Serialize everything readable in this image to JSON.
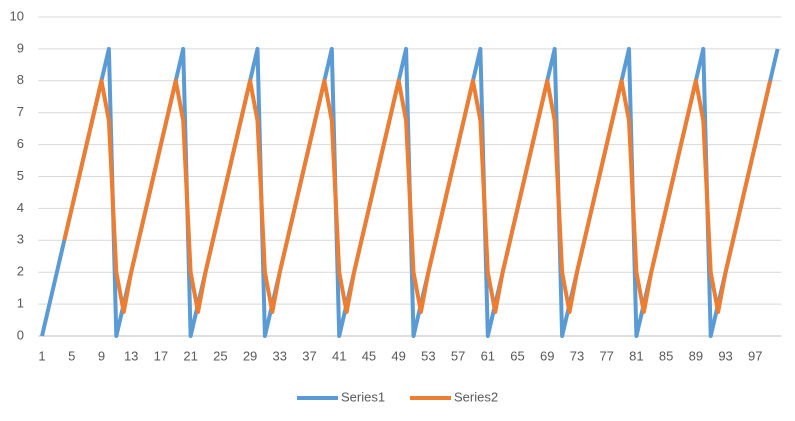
{
  "chart_data": {
    "type": "line",
    "categories": [
      1,
      null,
      null,
      null,
      5,
      null,
      null,
      null,
      9,
      null,
      null,
      null,
      13,
      null,
      null,
      null,
      17,
      null,
      null,
      null,
      21,
      null,
      null,
      null,
      25,
      null,
      null,
      null,
      29,
      null,
      null,
      null,
      33,
      null,
      null,
      null,
      37,
      null,
      null,
      null,
      41,
      null,
      null,
      null,
      45,
      null,
      null,
      null,
      49,
      null,
      null,
      null,
      53,
      null,
      null,
      null,
      57,
      null,
      null,
      null,
      61,
      null,
      null,
      null,
      65,
      null,
      null,
      null,
      69,
      null,
      null,
      null,
      73,
      null,
      null,
      null,
      77,
      null,
      null,
      null,
      81,
      null,
      null,
      null,
      85,
      null,
      null,
      null,
      89,
      null,
      null,
      null,
      93,
      null,
      null,
      null,
      97,
      null,
      null,
      null
    ],
    "series": [
      {
        "name": "Series1",
        "color": "#5b9bd5",
        "values": [
          0,
          1,
          2,
          3,
          4,
          5,
          6,
          7,
          8,
          9,
          0,
          1,
          2,
          3,
          4,
          5,
          6,
          7,
          8,
          9,
          0,
          1,
          2,
          3,
          4,
          5,
          6,
          7,
          8,
          9,
          0,
          1,
          2,
          3,
          4,
          5,
          6,
          7,
          8,
          9,
          0,
          1,
          2,
          3,
          4,
          5,
          6,
          7,
          8,
          9,
          0,
          1,
          2,
          3,
          4,
          5,
          6,
          7,
          8,
          9,
          0,
          1,
          2,
          3,
          4,
          5,
          6,
          7,
          8,
          9,
          0,
          1,
          2,
          3,
          4,
          5,
          6,
          7,
          8,
          9,
          0,
          1,
          2,
          3,
          4,
          5,
          6,
          7,
          8,
          9,
          0,
          1,
          2,
          3,
          4,
          5,
          6,
          7,
          8,
          9
        ]
      },
      {
        "name": "Series2",
        "color": "#ed7d31",
        "values": [
          null,
          null,
          null,
          3,
          4,
          5,
          6,
          7,
          8,
          6.75,
          2,
          0.75,
          2,
          3,
          4,
          5,
          6,
          7,
          8,
          6.75,
          2,
          0.75,
          2,
          3,
          4,
          5,
          6,
          7,
          8,
          6.75,
          2,
          0.75,
          2,
          3,
          4,
          5,
          6,
          7,
          8,
          6.75,
          2,
          0.75,
          2,
          3,
          4,
          5,
          6,
          7,
          8,
          6.75,
          2,
          0.75,
          2,
          3,
          4,
          5,
          6,
          7,
          8,
          6.75,
          2,
          0.75,
          2,
          3,
          4,
          5,
          6,
          7,
          8,
          6.75,
          2,
          0.75,
          2,
          3,
          4,
          5,
          6,
          7,
          8,
          6.75,
          2,
          0.75,
          2,
          3,
          4,
          5,
          6,
          7,
          8,
          6.75,
          2,
          0.75,
          2,
          3,
          4,
          5,
          6,
          7,
          8,
          null
        ]
      }
    ],
    "ylim": [
      0,
      10
    ],
    "yticks": [
      0,
      1,
      2,
      3,
      4,
      5,
      6,
      7,
      8,
      9,
      10
    ],
    "grid": true,
    "legend": "bottom"
  }
}
